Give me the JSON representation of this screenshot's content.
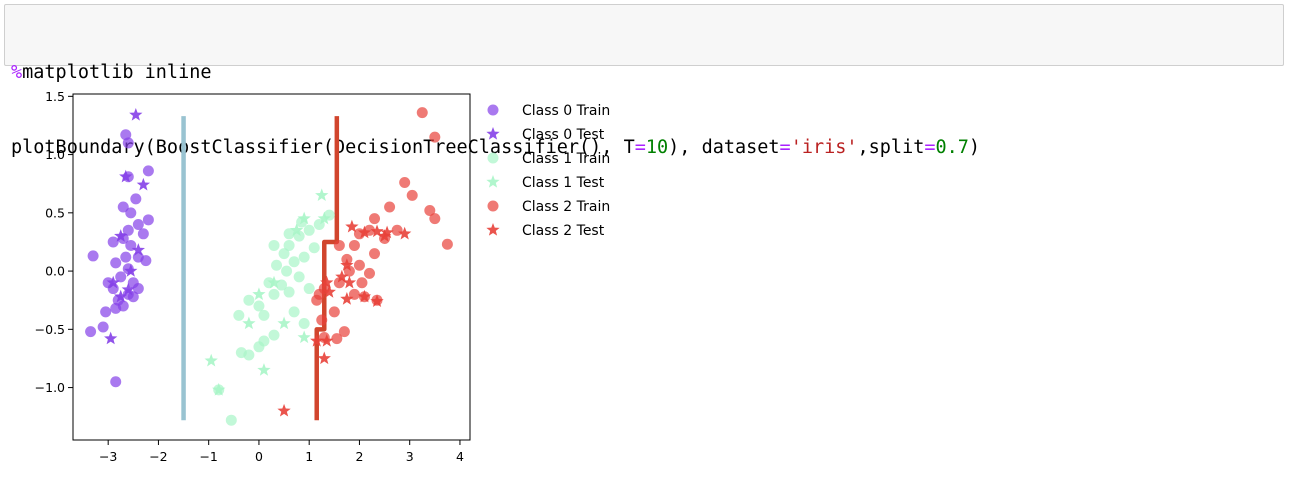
{
  "code_cell": {
    "line1": {
      "magic": "%",
      "rest": "matplotlib inline"
    },
    "line2": {
      "p1": "plotBoundary(BoostClassifier(DecisionTreeClassifier(), ",
      "k1": "T",
      "eq1": "=",
      "v1": "10",
      "p2": "), ",
      "k2": "dataset",
      "eq2": "=",
      "v2": "'iris'",
      "p3": ",",
      "k3": "split",
      "eq3": "=",
      "v3": "0.7",
      "p4": ")"
    }
  },
  "colors": {
    "class0": "#8540e8",
    "class1": "#a8f5c8",
    "class2": "#e8413a",
    "boundary_left": "#99c3d1",
    "boundary_right": "#d1452d"
  },
  "chart_data": {
    "type": "scatter",
    "title": "",
    "xlabel": "",
    "ylabel": "",
    "xlim": [
      -3.7,
      4.2
    ],
    "ylim": [
      -1.45,
      1.52
    ],
    "xticks": [
      -3,
      -2,
      -1,
      0,
      1,
      2,
      3,
      4
    ],
    "xtick_labels": [
      "−3",
      "−2",
      "−1",
      "0",
      "1",
      "2",
      "3",
      "4"
    ],
    "yticks": [
      -1.0,
      -0.5,
      0.0,
      0.5,
      1.0,
      1.5
    ],
    "ytick_labels": [
      "−1.0",
      "−0.5",
      "0.0",
      "0.5",
      "1.0",
      "1.5"
    ],
    "grid": false,
    "legend_position": "outside-right-top",
    "series": [
      {
        "name": "Class 0 Train",
        "marker": "circle",
        "color": "#8540e8",
        "points": [
          [
            -3.3,
            0.13
          ],
          [
            -3.35,
            -0.52
          ],
          [
            -3.1,
            -0.48
          ],
          [
            -3.05,
            -0.35
          ],
          [
            -2.85,
            -0.95
          ],
          [
            -2.65,
            1.17
          ],
          [
            -2.6,
            1.1
          ],
          [
            -2.6,
            0.81
          ],
          [
            -2.2,
            0.86
          ],
          [
            -2.2,
            0.44
          ],
          [
            -2.45,
            0.62
          ],
          [
            -2.55,
            0.5
          ],
          [
            -2.7,
            0.55
          ],
          [
            -2.6,
            0.35
          ],
          [
            -2.4,
            0.4
          ],
          [
            -2.3,
            0.32
          ],
          [
            -2.7,
            0.28
          ],
          [
            -2.9,
            0.25
          ],
          [
            -2.55,
            0.22
          ],
          [
            -2.85,
            0.07
          ],
          [
            -2.6,
            0.02
          ],
          [
            -2.4,
            0.12
          ],
          [
            -2.25,
            0.09
          ],
          [
            -2.75,
            -0.05
          ],
          [
            -2.5,
            -0.1
          ],
          [
            -2.9,
            -0.15
          ],
          [
            -2.6,
            -0.2
          ],
          [
            -2.8,
            -0.25
          ],
          [
            -2.5,
            -0.22
          ],
          [
            -2.7,
            -0.3
          ],
          [
            -2.4,
            -0.15
          ],
          [
            -2.65,
            0.12
          ],
          [
            -3.0,
            -0.1
          ],
          [
            -2.85,
            -0.32
          ]
        ]
      },
      {
        "name": "Class 0 Test",
        "marker": "star",
        "color": "#8540e8",
        "points": [
          [
            -2.45,
            1.34
          ],
          [
            -2.65,
            0.81
          ],
          [
            -2.3,
            0.74
          ],
          [
            -2.75,
            0.3
          ],
          [
            -2.4,
            0.18
          ],
          [
            -2.55,
            0.0
          ],
          [
            -2.75,
            -0.22
          ],
          [
            -2.6,
            -0.16
          ],
          [
            -2.95,
            -0.58
          ],
          [
            -2.9,
            -0.1
          ]
        ]
      },
      {
        "name": "Class 1 Train",
        "marker": "circle",
        "color": "#a8f5c8",
        "points": [
          [
            -0.55,
            -1.28
          ],
          [
            -0.8,
            -1.02
          ],
          [
            -0.35,
            -0.7
          ],
          [
            -0.2,
            -0.72
          ],
          [
            0.0,
            -0.65
          ],
          [
            0.1,
            -0.6
          ],
          [
            0.3,
            -0.55
          ],
          [
            -0.4,
            -0.38
          ],
          [
            -0.2,
            -0.25
          ],
          [
            0.0,
            -0.3
          ],
          [
            0.1,
            -0.38
          ],
          [
            0.3,
            -0.2
          ],
          [
            0.45,
            -0.12
          ],
          [
            0.6,
            -0.18
          ],
          [
            0.2,
            -0.1
          ],
          [
            0.35,
            0.05
          ],
          [
            0.55,
            0.0
          ],
          [
            0.7,
            0.08
          ],
          [
            0.9,
            0.12
          ],
          [
            0.6,
            0.22
          ],
          [
            0.8,
            0.3
          ],
          [
            1.0,
            0.35
          ],
          [
            1.2,
            0.4
          ],
          [
            1.4,
            0.48
          ],
          [
            1.1,
            0.2
          ],
          [
            0.5,
            0.15
          ],
          [
            0.8,
            -0.05
          ],
          [
            1.0,
            -0.15
          ],
          [
            0.9,
            -0.45
          ],
          [
            0.7,
            -0.35
          ],
          [
            0.3,
            0.22
          ],
          [
            0.6,
            0.32
          ],
          [
            0.85,
            0.42
          ]
        ]
      },
      {
        "name": "Class 1 Test",
        "marker": "star",
        "color": "#a8f5c8",
        "points": [
          [
            1.25,
            0.65
          ],
          [
            0.9,
            0.45
          ],
          [
            0.75,
            0.35
          ],
          [
            0.3,
            -0.1
          ],
          [
            0.0,
            -0.2
          ],
          [
            -0.2,
            -0.45
          ],
          [
            0.1,
            -0.85
          ],
          [
            -0.95,
            -0.77
          ],
          [
            -0.8,
            -1.02
          ],
          [
            0.5,
            -0.45
          ],
          [
            0.9,
            -0.57
          ],
          [
            1.3,
            0.45
          ]
        ]
      },
      {
        "name": "Class 2 Train",
        "marker": "circle",
        "color": "#e8413a",
        "points": [
          [
            3.25,
            1.36
          ],
          [
            3.5,
            1.15
          ],
          [
            2.9,
            0.76
          ],
          [
            3.05,
            0.65
          ],
          [
            3.4,
            0.52
          ],
          [
            3.5,
            0.45
          ],
          [
            2.6,
            0.55
          ],
          [
            2.3,
            0.45
          ],
          [
            3.75,
            0.23
          ],
          [
            2.2,
            0.35
          ],
          [
            2.0,
            0.32
          ],
          [
            1.9,
            0.22
          ],
          [
            2.5,
            0.28
          ],
          [
            2.75,
            0.35
          ],
          [
            1.6,
            0.22
          ],
          [
            1.75,
            0.1
          ],
          [
            1.8,
            0.0
          ],
          [
            2.0,
            0.05
          ],
          [
            2.2,
            -0.02
          ],
          [
            2.05,
            -0.1
          ],
          [
            1.6,
            -0.1
          ],
          [
            1.9,
            -0.2
          ],
          [
            2.1,
            -0.22
          ],
          [
            2.35,
            -0.25
          ],
          [
            1.5,
            -0.35
          ],
          [
            1.7,
            -0.52
          ],
          [
            1.55,
            -0.58
          ],
          [
            1.3,
            -0.57
          ],
          [
            1.25,
            -0.42
          ],
          [
            1.15,
            -0.25
          ],
          [
            1.3,
            -0.15
          ],
          [
            1.2,
            -0.2
          ],
          [
            2.3,
            0.15
          ]
        ]
      },
      {
        "name": "Class 2 Test",
        "marker": "star",
        "color": "#e8413a",
        "points": [
          [
            1.85,
            0.38
          ],
          [
            2.1,
            0.33
          ],
          [
            2.35,
            0.34
          ],
          [
            2.55,
            0.33
          ],
          [
            2.9,
            0.32
          ],
          [
            1.75,
            0.05
          ],
          [
            1.65,
            -0.05
          ],
          [
            1.8,
            -0.1
          ],
          [
            1.75,
            -0.24
          ],
          [
            2.1,
            -0.22
          ],
          [
            2.35,
            -0.26
          ],
          [
            1.35,
            -0.1
          ],
          [
            1.4,
            -0.18
          ],
          [
            1.35,
            -0.6
          ],
          [
            1.3,
            -0.75
          ],
          [
            1.15,
            -0.6
          ],
          [
            0.5,
            -1.2
          ],
          [
            2.5,
            0.3
          ]
        ]
      }
    ],
    "boundaries": [
      {
        "color": "#99c3d1",
        "points": [
          [
            -1.5,
            -1.28
          ],
          [
            -1.5,
            1.33
          ]
        ]
      },
      {
        "color": "#d1452d",
        "points": [
          [
            1.15,
            -1.28
          ],
          [
            1.15,
            -0.5
          ],
          [
            1.3,
            -0.5
          ],
          [
            1.3,
            0.25
          ],
          [
            1.55,
            0.25
          ],
          [
            1.55,
            1.33
          ]
        ]
      }
    ]
  }
}
